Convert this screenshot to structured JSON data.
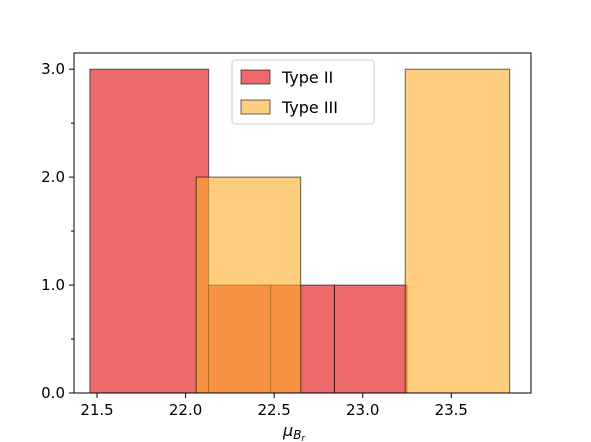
{
  "chart_data": {
    "type": "histogram",
    "xlabel": {
      "base": "μ",
      "sub": "B",
      "subsub": "r"
    },
    "xlim": [
      21.37,
      23.95
    ],
    "ylim": [
      0,
      3.15
    ],
    "xticks": [
      {
        "value": 21.5,
        "label": "21.5"
      },
      {
        "value": 22.0,
        "label": "22.0"
      },
      {
        "value": 22.5,
        "label": "22.5"
      },
      {
        "value": 23.0,
        "label": "23.0"
      },
      {
        "value": 23.5,
        "label": "23.5"
      }
    ],
    "yticks": [
      {
        "value": 0,
        "label": "0.0"
      },
      {
        "value": 1,
        "label": "1.0"
      },
      {
        "value": 2,
        "label": "2.0"
      },
      {
        "value": 3,
        "label": "3.0"
      }
    ],
    "yminor_ticks": [
      0.5,
      1.5,
      2.5
    ],
    "legend_position": "top-center",
    "series": [
      {
        "name": "Type II",
        "color": "#e41a1c",
        "opacity": 0.65,
        "bins": [
          {
            "x0": 21.46,
            "x1": 22.13,
            "count": 3
          },
          {
            "x0": 22.13,
            "x1": 22.48,
            "count": 1
          },
          {
            "x0": 22.48,
            "x1": 22.84,
            "count": 1
          },
          {
            "x0": 22.84,
            "x1": 23.25,
            "count": 1
          }
        ]
      },
      {
        "name": "Type III",
        "color": "#fdae28",
        "opacity": 0.6,
        "bins": [
          {
            "x0": 22.06,
            "x1": 22.65,
            "count": 2
          },
          {
            "x0": 22.65,
            "x1": 23.24,
            "count": 0
          },
          {
            "x0": 23.24,
            "x1": 23.83,
            "count": 3
          }
        ]
      }
    ]
  }
}
